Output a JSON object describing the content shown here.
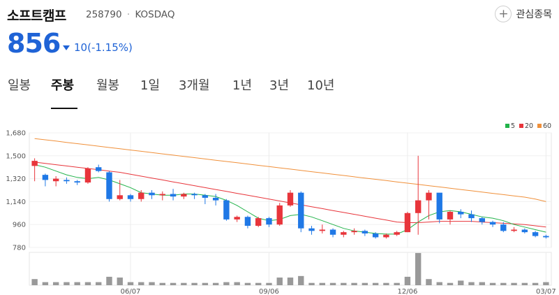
{
  "stock": {
    "name": "소프트캠프",
    "code": "258790",
    "separator": "·",
    "market": "KOSDAQ",
    "price": "856",
    "change": "10(-1.15%)",
    "direction": "down"
  },
  "favorite": {
    "label": "관심종목"
  },
  "tabs": [
    {
      "label": "일봉",
      "active": false
    },
    {
      "label": "주봉",
      "active": true
    },
    {
      "label": "월봉",
      "active": false
    },
    {
      "label": "1일",
      "active": false
    },
    {
      "label": "3개월",
      "active": false
    },
    {
      "label": "1년",
      "active": false
    },
    {
      "label": "3년",
      "active": false
    },
    {
      "label": "10년",
      "active": false
    }
  ],
  "colors": {
    "up": "#e8353b",
    "down": "#1f78e6",
    "ma5": "#22b34a",
    "ma20": "#e8353b",
    "ma60": "#f0903a",
    "volume": "#999999"
  },
  "chart_data": {
    "type": "candlestick",
    "y_ticks": [
      "1,680",
      "1,500",
      "1,320",
      "1,140",
      "960",
      "780"
    ],
    "ylim": [
      780,
      1680
    ],
    "x_ticks": [
      {
        "label": "06/07",
        "index": 9
      },
      {
        "label": "09/06",
        "index": 22
      },
      {
        "label": "12/06",
        "index": 35
      },
      {
        "label": "03/07",
        "index": 48
      }
    ],
    "legend": [
      "5",
      "20",
      "60"
    ],
    "candles": [
      [
        1420,
        1460,
        1480,
        1300
      ],
      [
        1350,
        1310,
        1360,
        1260
      ],
      [
        1300,
        1320,
        1340,
        1260
      ],
      [
        1310,
        1300,
        1330,
        1280
      ],
      [
        1300,
        1290,
        1310,
        1270
      ],
      [
        1290,
        1400,
        1410,
        1280
      ],
      [
        1410,
        1380,
        1430,
        1370
      ],
      [
        1370,
        1160,
        1380,
        1140
      ],
      [
        1160,
        1190,
        1310,
        1150
      ],
      [
        1190,
        1160,
        1200,
        1140
      ],
      [
        1160,
        1210,
        1230,
        1140
      ],
      [
        1210,
        1190,
        1230,
        1160
      ],
      [
        1190,
        1200,
        1220,
        1150
      ],
      [
        1200,
        1180,
        1240,
        1150
      ],
      [
        1180,
        1200,
        1210,
        1160
      ],
      [
        1200,
        1190,
        1210,
        1160
      ],
      [
        1190,
        1170,
        1200,
        1120
      ],
      [
        1170,
        1150,
        1200,
        1110
      ],
      [
        1150,
        1000,
        1160,
        990
      ],
      [
        1000,
        1020,
        1030,
        980
      ],
      [
        1020,
        950,
        1030,
        930
      ],
      [
        950,
        1010,
        1020,
        940
      ],
      [
        1010,
        960,
        1020,
        940
      ],
      [
        960,
        1110,
        1130,
        950
      ],
      [
        1110,
        1210,
        1230,
        1100
      ],
      [
        1210,
        930,
        1220,
        900
      ],
      [
        930,
        910,
        950,
        880
      ],
      [
        910,
        920,
        960,
        890
      ],
      [
        920,
        880,
        930,
        860
      ],
      [
        880,
        900,
        910,
        860
      ],
      [
        900,
        910,
        930,
        880
      ],
      [
        910,
        890,
        920,
        870
      ],
      [
        890,
        860,
        900,
        850
      ],
      [
        860,
        880,
        890,
        850
      ],
      [
        880,
        900,
        910,
        870
      ],
      [
        900,
        1050,
        1060,
        900
      ],
      [
        1050,
        1150,
        1500,
        880
      ],
      [
        1150,
        1210,
        1230,
        1000
      ],
      [
        1210,
        1000,
        1020,
        970
      ],
      [
        1000,
        1060,
        1070,
        960
      ],
      [
        1060,
        1040,
        1080,
        1010
      ],
      [
        1040,
        1010,
        1070,
        980
      ],
      [
        1010,
        980,
        1020,
        960
      ],
      [
        980,
        960,
        990,
        940
      ],
      [
        960,
        910,
        980,
        900
      ],
      [
        910,
        920,
        940,
        900
      ],
      [
        920,
        900,
        930,
        890
      ],
      [
        900,
        870,
        910,
        860
      ],
      [
        870,
        860,
        880,
        850
      ]
    ],
    "ma5": [
      1430,
      1410,
      1380,
      1350,
      1330,
      1320,
      1330,
      1310,
      1280,
      1250,
      1210,
      1200,
      1190,
      1190,
      1200,
      1200,
      1190,
      1180,
      1150,
      1110,
      1060,
      1010,
      990,
      1000,
      1030,
      1040,
      1020,
      990,
      960,
      930,
      910,
      900,
      890,
      885,
      885,
      920,
      980,
      1030,
      1060,
      1070,
      1060,
      1040,
      1020,
      1010,
      990,
      960,
      940,
      920,
      900
    ],
    "ma20": [
      1450,
      1440,
      1430,
      1420,
      1410,
      1400,
      1390,
      1380,
      1370,
      1355,
      1340,
      1325,
      1310,
      1295,
      1280,
      1265,
      1250,
      1235,
      1220,
      1205,
      1190,
      1175,
      1160,
      1145,
      1130,
      1115,
      1100,
      1085,
      1070,
      1055,
      1040,
      1025,
      1010,
      995,
      980,
      975,
      975,
      980,
      985,
      985,
      985,
      985,
      980,
      975,
      970,
      965,
      960,
      950,
      940
    ],
    "ma60": [
      1635,
      1625,
      1615,
      1605,
      1595,
      1585,
      1575,
      1565,
      1555,
      1545,
      1535,
      1525,
      1515,
      1505,
      1495,
      1485,
      1475,
      1465,
      1455,
      1445,
      1435,
      1425,
      1415,
      1405,
      1395,
      1385,
      1375,
      1365,
      1355,
      1345,
      1335,
      1325,
      1315,
      1305,
      1295,
      1285,
      1275,
      1265,
      1255,
      1245,
      1235,
      1225,
      1215,
      1205,
      1195,
      1185,
      1175,
      1160,
      1140
    ],
    "volume": [
      8,
      4,
      4,
      4,
      4,
      4,
      4,
      11,
      10,
      4,
      4,
      4,
      3,
      3,
      3,
      3,
      3,
      3,
      4,
      4,
      3,
      3,
      3,
      10,
      10,
      12,
      3,
      3,
      3,
      3,
      3,
      3,
      3,
      3,
      3,
      11,
      42,
      8,
      4,
      3,
      6,
      4,
      4,
      3,
      3,
      3,
      3,
      3,
      4
    ]
  }
}
